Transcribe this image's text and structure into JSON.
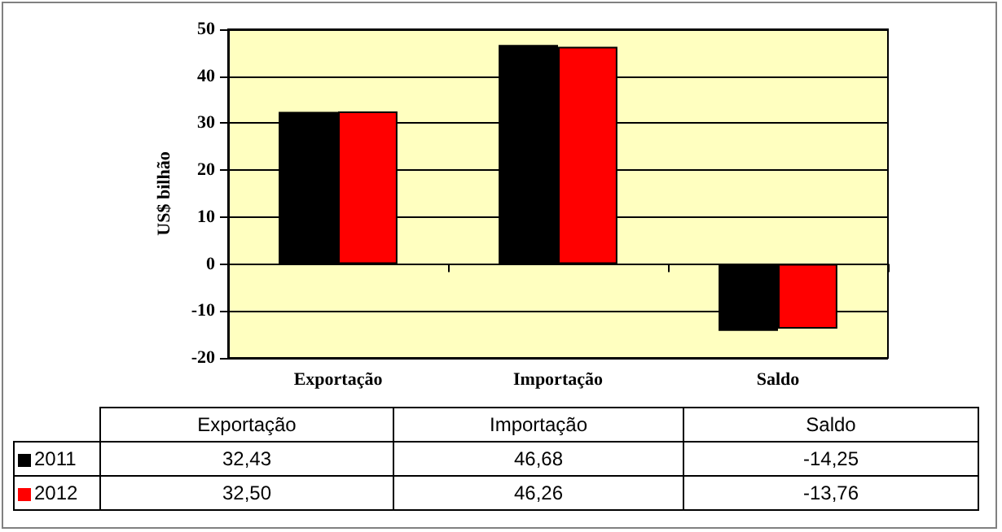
{
  "chart_data": {
    "type": "bar",
    "ylabel": "US$ bilhão",
    "categories": [
      "Exportação",
      "Importação",
      "Saldo"
    ],
    "series": [
      {
        "name": "2011",
        "color": "#000000",
        "values": [
          32.43,
          46.68,
          -14.25
        ],
        "value_labels": [
          "32,43",
          "46,68",
          "-14,25"
        ]
      },
      {
        "name": "2012",
        "color": "#ff0000",
        "values": [
          32.5,
          46.26,
          -13.76
        ],
        "value_labels": [
          "32,50",
          "46,26",
          "-13,76"
        ]
      }
    ],
    "ylim": [
      -20,
      50
    ],
    "yticks": [
      -20,
      -10,
      0,
      10,
      20,
      30,
      40,
      50
    ],
    "grid": "y",
    "legend": "bottom"
  }
}
